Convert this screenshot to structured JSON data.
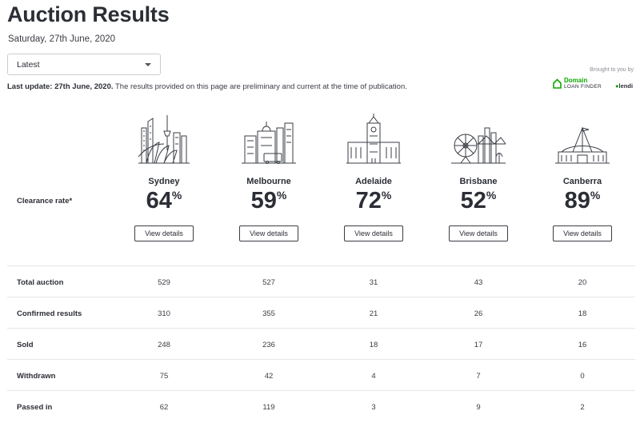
{
  "header": {
    "title": "Auction Results",
    "date": "Saturday, 27th June, 2020"
  },
  "filter": {
    "selected": "Latest"
  },
  "update": {
    "bold": "Last update: 27th June, 2020.",
    "text": " The results provided on this page are preliminary and current at the time of publication."
  },
  "sponsor": {
    "brought": "Brought to you by",
    "domain_line1": "Domain",
    "domain_line2": "LOAN FINDER",
    "lendi": "lendi"
  },
  "clearance_label": "Clearance rate*",
  "cities": [
    {
      "name": "Sydney",
      "rate": "64",
      "unit": "%",
      "button": "View details",
      "icon": "sydney-skyline-icon"
    },
    {
      "name": "Melbourne",
      "rate": "59",
      "unit": "%",
      "button": "View details",
      "icon": "melbourne-skyline-icon"
    },
    {
      "name": "Adelaide",
      "rate": "72",
      "unit": "%",
      "button": "View details",
      "icon": "adelaide-skyline-icon"
    },
    {
      "name": "Brisbane",
      "rate": "52",
      "unit": "%",
      "button": "View details",
      "icon": "brisbane-skyline-icon"
    },
    {
      "name": "Canberra",
      "rate": "89",
      "unit": "%",
      "button": "View details",
      "icon": "canberra-skyline-icon"
    }
  ],
  "table": {
    "rows": [
      {
        "label": "Total auction",
        "values": [
          "529",
          "527",
          "31",
          "43",
          "20"
        ]
      },
      {
        "label": "Confirmed results",
        "values": [
          "310",
          "355",
          "21",
          "26",
          "18"
        ]
      },
      {
        "label": "Sold",
        "values": [
          "248",
          "236",
          "18",
          "17",
          "16"
        ]
      },
      {
        "label": "Withdrawn",
        "values": [
          "75",
          "42",
          "4",
          "7",
          "0"
        ]
      },
      {
        "label": "Passed in",
        "values": [
          "62",
          "119",
          "3",
          "9",
          "2"
        ]
      }
    ]
  },
  "colors": {
    "text": "#2b2e35",
    "brand_green": "#0ea800",
    "border": "#e4e6ea"
  }
}
